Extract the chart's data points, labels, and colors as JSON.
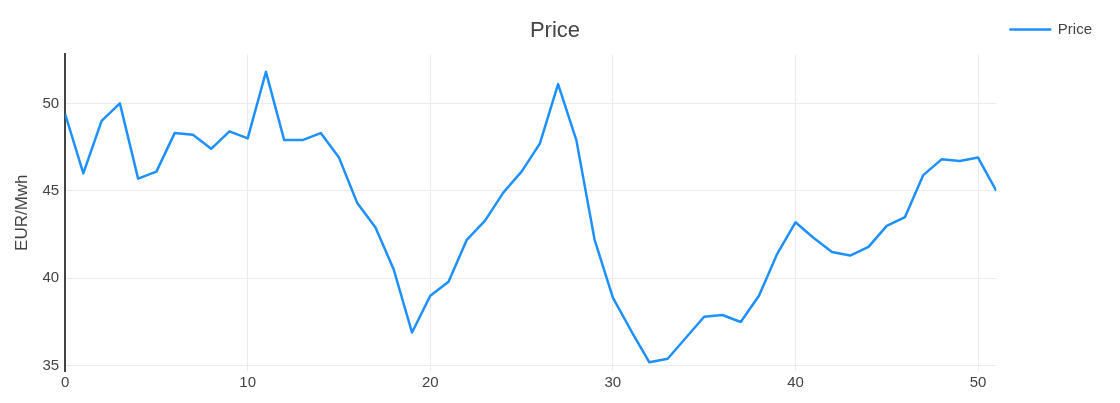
{
  "chart_data": {
    "type": "line",
    "title": "Price",
    "ylabel": "EUR/Mwh",
    "x": [
      0,
      1,
      2,
      3,
      4,
      5,
      6,
      7,
      8,
      9,
      10,
      11,
      12,
      13,
      14,
      15,
      16,
      17,
      18,
      19,
      20,
      21,
      22,
      23,
      24,
      25,
      26,
      27,
      28,
      29,
      30,
      31,
      32,
      33,
      34,
      35,
      36,
      37,
      38,
      39,
      40,
      41,
      42,
      43,
      44,
      45,
      46,
      47,
      48,
      49,
      50,
      51
    ],
    "series": [
      {
        "name": "Price",
        "color": "#1e90ff",
        "values": [
          49.4,
          46.0,
          49.0,
          50.0,
          45.7,
          46.1,
          48.3,
          48.2,
          47.4,
          48.4,
          48.0,
          51.8,
          47.9,
          47.9,
          48.3,
          46.9,
          44.3,
          42.9,
          40.5,
          36.9,
          39.0,
          39.8,
          42.2,
          43.3,
          44.9,
          46.1,
          47.7,
          51.1,
          47.9,
          42.2,
          38.9,
          37.0,
          35.2,
          35.4,
          36.6,
          37.8,
          37.9,
          37.5,
          39.0,
          41.4,
          43.2,
          42.3,
          41.5,
          41.3,
          41.8,
          43.0,
          43.5,
          45.9,
          46.8,
          46.7,
          46.9,
          45.0
        ]
      }
    ],
    "xlim": [
      0,
      51
    ],
    "xticks": [
      0,
      10,
      20,
      30,
      40,
      50
    ],
    "ylim": [
      34.7,
      52.8
    ],
    "yticks": [
      35,
      40,
      45,
      50
    ],
    "grid": true,
    "legend": "top right",
    "marker": "none",
    "line_style": "solid"
  }
}
